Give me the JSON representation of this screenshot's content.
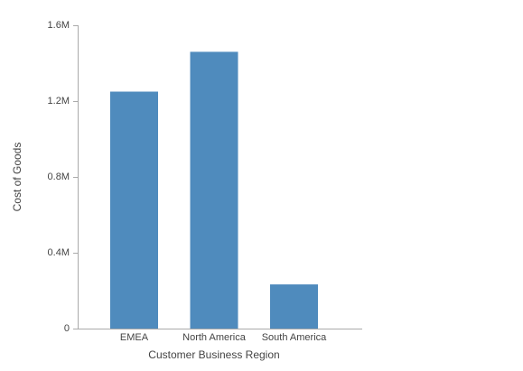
{
  "chart_data": {
    "type": "bar",
    "x_label": "Customer Business Region",
    "y_label": "Cost of Goods",
    "categories": [
      "EMEA",
      "North America",
      "South America"
    ],
    "values": [
      1250000,
      1460000,
      233000
    ],
    "color": "#4f8bbd",
    "ylim": [
      0,
      1600000
    ],
    "yticks": [
      0,
      {
        "value": 400000,
        "label": "0.4M"
      },
      {
        "value": 800000,
        "label": "0.8M"
      },
      {
        "value": 1200000,
        "label": "1.2M"
      },
      {
        "value": 1600000,
        "label": "1.6M"
      }
    ]
  }
}
